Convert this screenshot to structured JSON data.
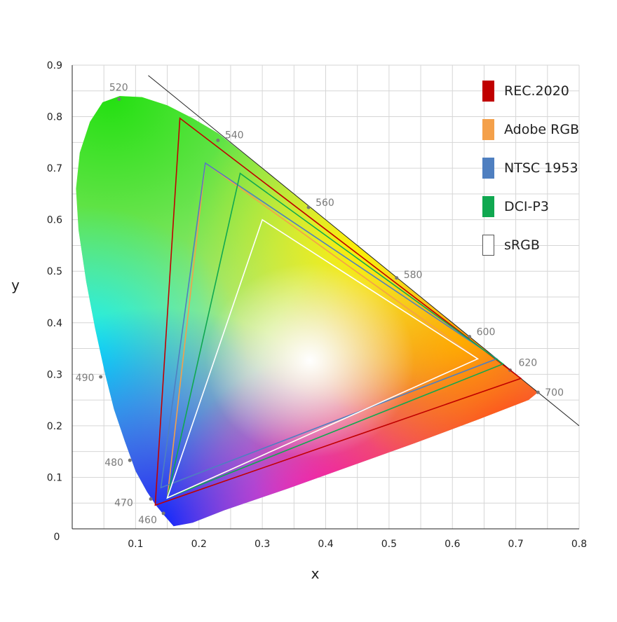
{
  "chart_data": {
    "type": "scatter",
    "xlabel": "x",
    "ylabel": "y",
    "xlim": [
      0,
      0.8
    ],
    "ylim": [
      0,
      0.9
    ],
    "x_ticks": [
      "0.1",
      "0.2",
      "0.3",
      "0.4",
      "0.5",
      "0.6",
      "0.7",
      "0.8"
    ],
    "y_ticks": [
      "0.1",
      "0.2",
      "0.3",
      "0.4",
      "0.5",
      "0.6",
      "0.7",
      "0.8",
      "0.9"
    ],
    "origin_label": "0",
    "grid": true,
    "legend_position": "top-right",
    "spectral_locus": [
      {
        "nm": "460",
        "x": 0.144,
        "y": 0.03
      },
      {
        "nm": "470",
        "x": 0.124,
        "y": 0.058
      },
      {
        "nm": "480",
        "x": 0.091,
        "y": 0.133
      },
      {
        "nm": "490",
        "x": 0.045,
        "y": 0.295
      },
      {
        "nm": "520",
        "x": 0.074,
        "y": 0.834
      },
      {
        "nm": "540",
        "x": 0.23,
        "y": 0.754
      },
      {
        "nm": "560",
        "x": 0.373,
        "y": 0.624
      },
      {
        "nm": "580",
        "x": 0.512,
        "y": 0.487
      },
      {
        "nm": "600",
        "x": 0.627,
        "y": 0.373
      },
      {
        "nm": "620",
        "x": 0.691,
        "y": 0.308
      },
      {
        "nm": "700",
        "x": 0.735,
        "y": 0.265
      }
    ],
    "series": [
      {
        "name": "REC.2020",
        "color": "#c00000",
        "red": [
          0.708,
          0.292
        ],
        "green": [
          0.17,
          0.797
        ],
        "blue": [
          0.131,
          0.046
        ]
      },
      {
        "name": "Adobe RGB",
        "color": "#f4a04a",
        "red": [
          0.64,
          0.33
        ],
        "green": [
          0.21,
          0.71
        ],
        "blue": [
          0.15,
          0.06
        ]
      },
      {
        "name": "NTSC 1953",
        "color": "#4f7fc0",
        "red": [
          0.67,
          0.33
        ],
        "green": [
          0.21,
          0.71
        ],
        "blue": [
          0.14,
          0.08
        ]
      },
      {
        "name": "DCI-P3",
        "color": "#10a850",
        "red": [
          0.68,
          0.32
        ],
        "green": [
          0.265,
          0.69
        ],
        "blue": [
          0.15,
          0.06
        ]
      },
      {
        "name": "sRGB",
        "color": "#ffffff",
        "red": [
          0.64,
          0.33
        ],
        "green": [
          0.3,
          0.6
        ],
        "blue": [
          0.15,
          0.06
        ]
      }
    ]
  }
}
